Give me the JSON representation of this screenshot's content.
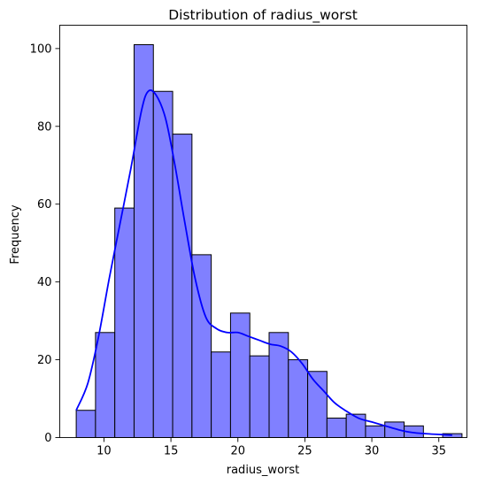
{
  "chart_data": {
    "type": "bar",
    "title": "Distribution of radius_worst",
    "xlabel": "radius_worst",
    "ylabel": "Frequency",
    "xlim": [
      6.7,
      37.1
    ],
    "ylim": [
      0,
      106
    ],
    "xticks": [
      10,
      15,
      20,
      25,
      30,
      35
    ],
    "yticks": [
      0,
      20,
      40,
      60,
      80,
      100
    ],
    "bin_edges": [
      7.93,
      9.37,
      10.81,
      12.25,
      13.69,
      15.13,
      16.57,
      18.01,
      19.45,
      20.89,
      22.33,
      23.77,
      25.21,
      26.65,
      28.09,
      29.53,
      30.97,
      32.41,
      33.85,
      35.29,
      36.73
    ],
    "values": [
      7,
      27,
      59,
      101,
      89,
      78,
      47,
      22,
      32,
      21,
      27,
      20,
      17,
      5,
      6,
      3,
      4,
      3,
      0,
      1
    ],
    "bar_color": "#8080ff",
    "bar_edge_color": "#000000",
    "kde": {
      "x": [
        7.93,
        8.8,
        9.6,
        10.4,
        11.2,
        12.0,
        12.8,
        13.3,
        13.9,
        14.6,
        15.3,
        16.0,
        16.8,
        17.6,
        18.4,
        19.2,
        20.0,
        20.8,
        21.6,
        22.4,
        23.2,
        24.0,
        24.8,
        25.6,
        26.4,
        27.2,
        28.0,
        29.0,
        30.0,
        31.0,
        32.0,
        33.0,
        34.0,
        35.0,
        36.0
      ],
      "y": [
        7,
        14,
        26,
        41,
        55,
        69,
        84,
        89,
        88,
        82,
        70,
        56,
        41,
        31,
        28,
        27,
        27,
        26,
        25,
        24,
        23.5,
        22,
        19,
        15,
        12,
        9,
        7,
        5,
        4,
        3,
        2,
        1.3,
        1,
        0.8,
        0.6
      ],
      "color": "#0000ff"
    },
    "grid": false
  }
}
